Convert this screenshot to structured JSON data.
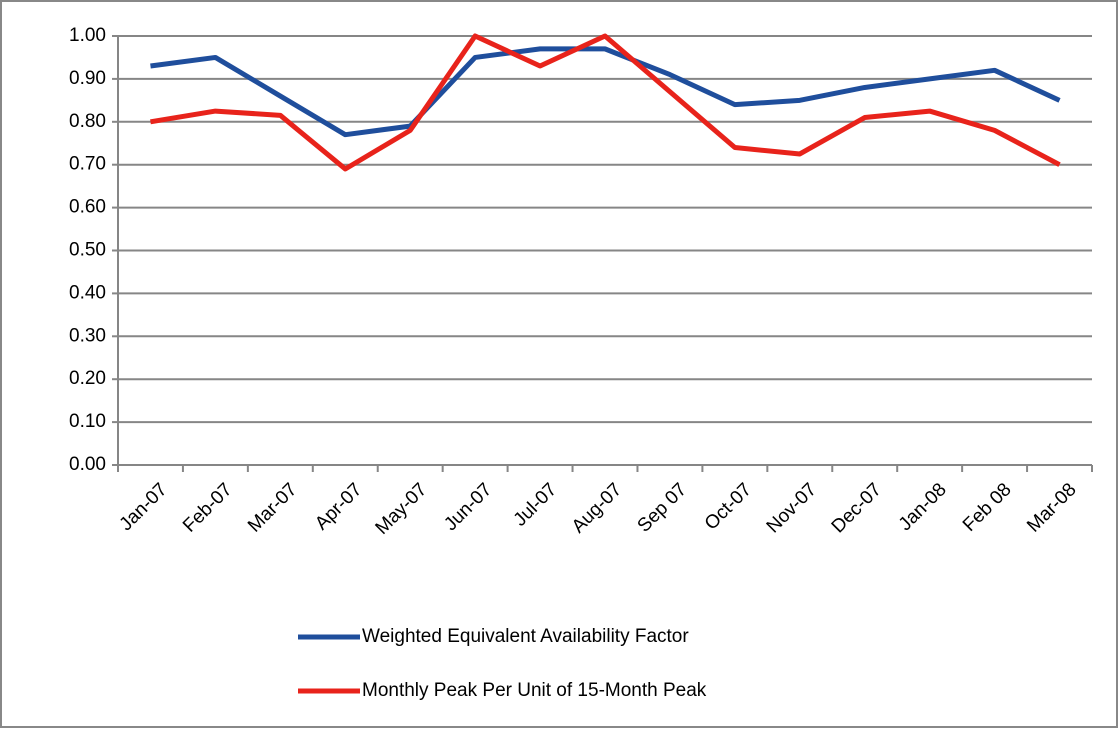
{
  "chart_data": {
    "type": "line",
    "categories": [
      "Jan-07",
      "Feb-07",
      "Mar-07",
      "Apr-07",
      "May-07",
      "Jun-07",
      "Jul-07",
      "Aug-07",
      "Sep 07",
      "Oct-07",
      "Nov-07",
      "Dec-07",
      "Jan-08",
      "Feb 08",
      "Mar-08"
    ],
    "series": [
      {
        "name": "Weighted Equivalent Availability Factor",
        "color": "#1f4e9c",
        "values": [
          0.93,
          0.95,
          0.86,
          0.77,
          0.79,
          0.95,
          0.97,
          0.97,
          0.91,
          0.84,
          0.85,
          0.88,
          0.9,
          0.92,
          0.85
        ]
      },
      {
        "name": "Monthly Peak Per Unit of 15-Month Peak",
        "color": "#e8231b",
        "values": [
          0.8,
          0.825,
          0.815,
          0.69,
          0.78,
          1.0,
          0.93,
          1.0,
          0.87,
          0.74,
          0.725,
          0.81,
          0.825,
          0.78,
          0.7
        ]
      }
    ],
    "ylim": [
      0,
      1
    ],
    "yticks": [
      {
        "value": 0,
        "label": "0.00"
      },
      {
        "value": 0.1,
        "label": "0.10"
      },
      {
        "value": 0.2,
        "label": "0.20"
      },
      {
        "value": 0.3,
        "label": "0.30"
      },
      {
        "value": 0.4,
        "label": "0.40"
      },
      {
        "value": 0.5,
        "label": "0.50"
      },
      {
        "value": 0.6,
        "label": "0.60"
      },
      {
        "value": 0.7,
        "label": "0.70"
      },
      {
        "value": 0.8,
        "label": "0.80"
      },
      {
        "value": 0.9,
        "label": "0.90"
      },
      {
        "value": 1,
        "label": "1.00"
      }
    ],
    "grid": true,
    "legend": "bottom"
  }
}
